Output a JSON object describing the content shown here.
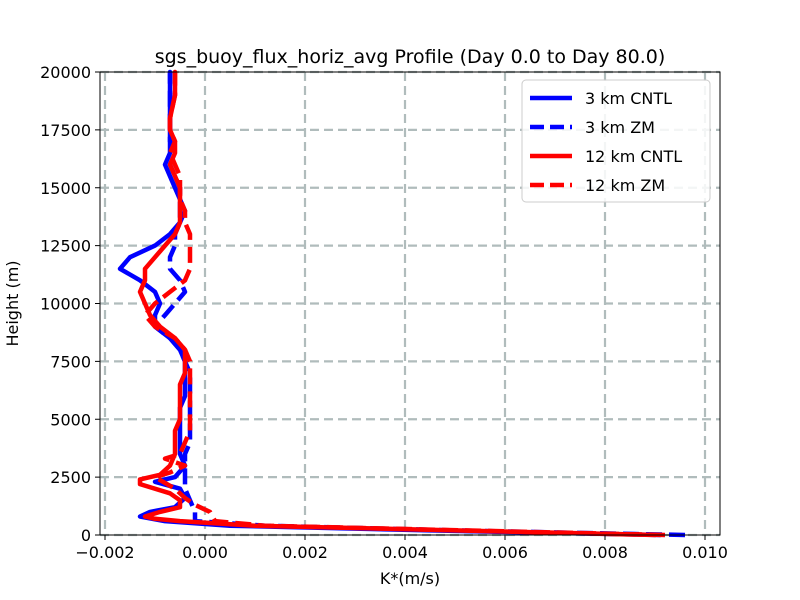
{
  "chart_data": {
    "type": "line",
    "title": "sgs_buoy_flux_horiz_avg Profile (Day 0.0 to Day 80.0)",
    "xlabel": "K*(m/s)",
    "ylabel": "Height (m)",
    "xlim": [
      -0.0021,
      0.0103
    ],
    "ylim": [
      0,
      20000
    ],
    "xticks": [
      -0.002,
      0.0,
      0.002,
      0.004,
      0.006,
      0.008,
      0.01
    ],
    "xtick_labels": [
      "−0.002",
      "0.000",
      "0.002",
      "0.004",
      "0.006",
      "0.008",
      "0.010"
    ],
    "yticks": [
      0,
      2500,
      5000,
      7500,
      10000,
      12500,
      15000,
      17500,
      20000
    ],
    "ytick_labels": [
      "0",
      "2500",
      "5000",
      "7500",
      "10000",
      "12500",
      "15000",
      "17500",
      "20000"
    ],
    "grid": true,
    "legend_position": "top-right",
    "series": [
      {
        "name": "3 km CNTL",
        "color": "#0000ff",
        "dash": "solid",
        "points": [
          [
            0.0091,
            0
          ],
          [
            0.0045,
            200
          ],
          [
            0.0005,
            400
          ],
          [
            -0.0008,
            600
          ],
          [
            -0.0013,
            800
          ],
          [
            -0.0011,
            1000
          ],
          [
            -0.0006,
            1200
          ],
          [
            -0.0004,
            1600
          ],
          [
            -0.0005,
            2000
          ],
          [
            -0.001,
            2300
          ],
          [
            -0.0006,
            2500
          ],
          [
            -0.0004,
            3000
          ],
          [
            -0.0005,
            3500
          ],
          [
            -0.0005,
            4000
          ],
          [
            -0.0005,
            4500
          ],
          [
            -0.0005,
            5000
          ],
          [
            -0.0005,
            5500
          ],
          [
            -0.0004,
            6000
          ],
          [
            -0.0004,
            6500
          ],
          [
            -0.0004,
            7000
          ],
          [
            -0.0004,
            7500
          ],
          [
            -0.0005,
            8000
          ],
          [
            -0.0007,
            8500
          ],
          [
            -0.001,
            9000
          ],
          [
            -0.001,
            9500
          ],
          [
            -0.0009,
            10000
          ],
          [
            -0.001,
            10500
          ],
          [
            -0.0013,
            11000
          ],
          [
            -0.0017,
            11500
          ],
          [
            -0.0015,
            12000
          ],
          [
            -0.001,
            12500
          ],
          [
            -0.0007,
            13000
          ],
          [
            -0.0005,
            13500
          ],
          [
            -0.0004,
            14000
          ],
          [
            -0.0005,
            14500
          ],
          [
            -0.0006,
            15000
          ],
          [
            -0.0007,
            15500
          ],
          [
            -0.0008,
            16000
          ],
          [
            -0.0007,
            16500
          ],
          [
            -0.0007,
            17000
          ],
          [
            -0.0007,
            17500
          ],
          [
            -0.0007,
            18000
          ],
          [
            -0.0007,
            19000
          ],
          [
            -0.0007,
            20000
          ]
        ]
      },
      {
        "name": "3 km ZM",
        "color": "#0000ff",
        "dash": "dashed",
        "points": [
          [
            0.0096,
            0
          ],
          [
            0.005,
            200
          ],
          [
            0.0012,
            400
          ],
          [
            -0.0002,
            600
          ],
          [
            -0.0002,
            800
          ],
          [
            -0.0002,
            1000
          ],
          [
            -0.0003,
            1500
          ],
          [
            -0.0004,
            2000
          ],
          [
            -0.0004,
            2500
          ],
          [
            -0.0004,
            3000
          ],
          [
            -0.0004,
            3500
          ],
          [
            -0.0003,
            4000
          ],
          [
            -0.0003,
            4500
          ],
          [
            -0.0003,
            5000
          ],
          [
            -0.0003,
            5500
          ],
          [
            -0.0003,
            6000
          ],
          [
            -0.0003,
            6500
          ],
          [
            -0.0003,
            7000
          ],
          [
            -0.0004,
            7500
          ],
          [
            -0.0005,
            8000
          ],
          [
            -0.0007,
            8500
          ],
          [
            -0.001,
            9000
          ],
          [
            -0.0008,
            9500
          ],
          [
            -0.0006,
            10000
          ],
          [
            -0.0004,
            10500
          ],
          [
            -0.0005,
            11000
          ],
          [
            -0.0007,
            11500
          ],
          [
            -0.0007,
            12000
          ],
          [
            -0.0006,
            12500
          ],
          [
            -0.0006,
            13000
          ],
          [
            -0.0005,
            13500
          ],
          [
            -0.0005,
            14000
          ],
          [
            -0.0005,
            14500
          ],
          [
            -0.0005,
            15000
          ],
          [
            -0.0006,
            15500
          ],
          [
            -0.0007,
            16000
          ],
          [
            -0.0006,
            16500
          ],
          [
            -0.0007,
            17000
          ],
          [
            -0.0007,
            18000
          ],
          [
            -0.0007,
            19000
          ],
          [
            -0.0007,
            20000
          ]
        ]
      },
      {
        "name": "12 km CNTL",
        "color": "#ff0000",
        "dash": "solid",
        "points": [
          [
            0.009,
            0
          ],
          [
            0.005,
            200
          ],
          [
            0.001,
            400
          ],
          [
            -0.0005,
            600
          ],
          [
            -0.001,
            700
          ],
          [
            -0.0012,
            800
          ],
          [
            -0.0009,
            1000
          ],
          [
            -0.0005,
            1200
          ],
          [
            -0.0005,
            1500
          ],
          [
            -0.0007,
            1800
          ],
          [
            -0.0013,
            2200
          ],
          [
            -0.0013,
            2400
          ],
          [
            -0.0009,
            2600
          ],
          [
            -0.0007,
            3000
          ],
          [
            -0.0006,
            3500
          ],
          [
            -0.0006,
            4000
          ],
          [
            -0.0006,
            4500
          ],
          [
            -0.0005,
            5000
          ],
          [
            -0.0005,
            5500
          ],
          [
            -0.0005,
            6000
          ],
          [
            -0.0005,
            6500
          ],
          [
            -0.0004,
            7000
          ],
          [
            -0.0004,
            7500
          ],
          [
            -0.0004,
            8000
          ],
          [
            -0.0006,
            8500
          ],
          [
            -0.0009,
            9000
          ],
          [
            -0.0011,
            9500
          ],
          [
            -0.0012,
            10000
          ],
          [
            -0.0013,
            10500
          ],
          [
            -0.0012,
            11000
          ],
          [
            -0.0012,
            11500
          ],
          [
            -0.001,
            12000
          ],
          [
            -0.0008,
            12500
          ],
          [
            -0.0006,
            13000
          ],
          [
            -0.0005,
            13500
          ],
          [
            -0.0005,
            14000
          ],
          [
            -0.0005,
            14500
          ],
          [
            -0.0005,
            15000
          ],
          [
            -0.0006,
            15500
          ],
          [
            -0.0007,
            16000
          ],
          [
            -0.0006,
            16500
          ],
          [
            -0.0006,
            17000
          ],
          [
            -0.0007,
            17500
          ],
          [
            -0.0007,
            18000
          ],
          [
            -0.0006,
            19000
          ],
          [
            -0.0006,
            20000
          ]
        ]
      },
      {
        "name": "12 km ZM",
        "color": "#ff0000",
        "dash": "dashed",
        "points": [
          [
            0.0092,
            0
          ],
          [
            0.0052,
            200
          ],
          [
            0.0012,
            400
          ],
          [
            0.0002,
            600
          ],
          [
            0.0001,
            1000
          ],
          [
            -0.0002,
            1300
          ],
          [
            -0.0004,
            1600
          ],
          [
            -0.0006,
            2000
          ],
          [
            -0.001,
            2500
          ],
          [
            -0.0007,
            2700
          ],
          [
            -0.0004,
            3000
          ],
          [
            -0.0008,
            3300
          ],
          [
            -0.0005,
            3500
          ],
          [
            -0.0004,
            4000
          ],
          [
            -0.0003,
            4500
          ],
          [
            -0.0003,
            5000
          ],
          [
            -0.0003,
            5500
          ],
          [
            -0.0003,
            6000
          ],
          [
            -0.0003,
            6500
          ],
          [
            -0.0003,
            7000
          ],
          [
            -0.0003,
            7500
          ],
          [
            -0.0004,
            8000
          ],
          [
            -0.0006,
            8500
          ],
          [
            -0.001,
            9000
          ],
          [
            -0.0012,
            9500
          ],
          [
            -0.001,
            10000
          ],
          [
            -0.0007,
            10500
          ],
          [
            -0.0004,
            11000
          ],
          [
            -0.0003,
            11500
          ],
          [
            -0.0003,
            12000
          ],
          [
            -0.0003,
            12500
          ],
          [
            -0.0003,
            13000
          ],
          [
            -0.0004,
            13500
          ],
          [
            -0.0004,
            14000
          ],
          [
            -0.0005,
            14500
          ],
          [
            -0.0005,
            15000
          ],
          [
            -0.0005,
            15500
          ],
          [
            -0.0006,
            16000
          ],
          [
            -0.0007,
            16500
          ],
          [
            -0.0006,
            17000
          ],
          [
            -0.0007,
            17500
          ],
          [
            -0.0007,
            18000
          ],
          [
            -0.0006,
            19000
          ],
          [
            -0.0006,
            20000
          ]
        ]
      }
    ]
  }
}
